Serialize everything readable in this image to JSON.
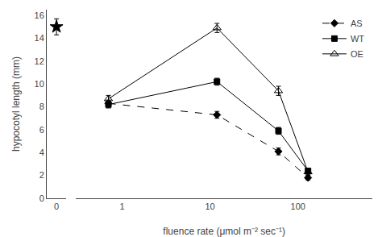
{
  "chart_data": {
    "type": "line",
    "xlabel": "fluence rate (μmol m⁻² sec⁻¹)",
    "ylabel": "hypocotyl length (mm)",
    "log": "x",
    "xlim": [
      0.3,
      700
    ],
    "xticks": [
      1,
      10,
      100
    ],
    "ylim": [
      0,
      16.5
    ],
    "yticks": [
      0,
      2,
      4,
      6,
      8,
      10,
      12,
      14,
      16
    ],
    "grid": false,
    "legend": "upper right",
    "color": "#000000",
    "series": [
      {
        "name": "AS",
        "x": [
          0.7,
          12,
          60,
          130
        ],
        "values": [
          8.3,
          7.3,
          4.1,
          1.8
        ],
        "yerr": [
          0.3,
          0.3,
          0.3,
          0.2
        ],
        "color": "#000000",
        "marker": "diamond",
        "line_style": "dashed"
      },
      {
        "name": "WT",
        "x": [
          0.7,
          12,
          60,
          130
        ],
        "values": [
          8.2,
          10.2,
          5.9,
          2.4
        ],
        "yerr": [
          0.3,
          0.3,
          0.3,
          0.2
        ],
        "color": "#000000",
        "marker": "square",
        "line_style": "solid"
      },
      {
        "name": "OE",
        "x": [
          0.7,
          12,
          60,
          130
        ],
        "values": [
          8.7,
          14.9,
          9.4,
          2.3
        ],
        "yerr": [
          0.3,
          0.4,
          0.4,
          0.2
        ],
        "color": "#000000",
        "marker": "triangle-up-open",
        "line_style": "solid"
      },
      {
        "x": [
          0
        ],
        "values": [
          15.0
        ],
        "yerr": [
          0.7
        ],
        "color": "#000000",
        "marker": "star",
        "type": "scatter"
      }
    ]
  }
}
